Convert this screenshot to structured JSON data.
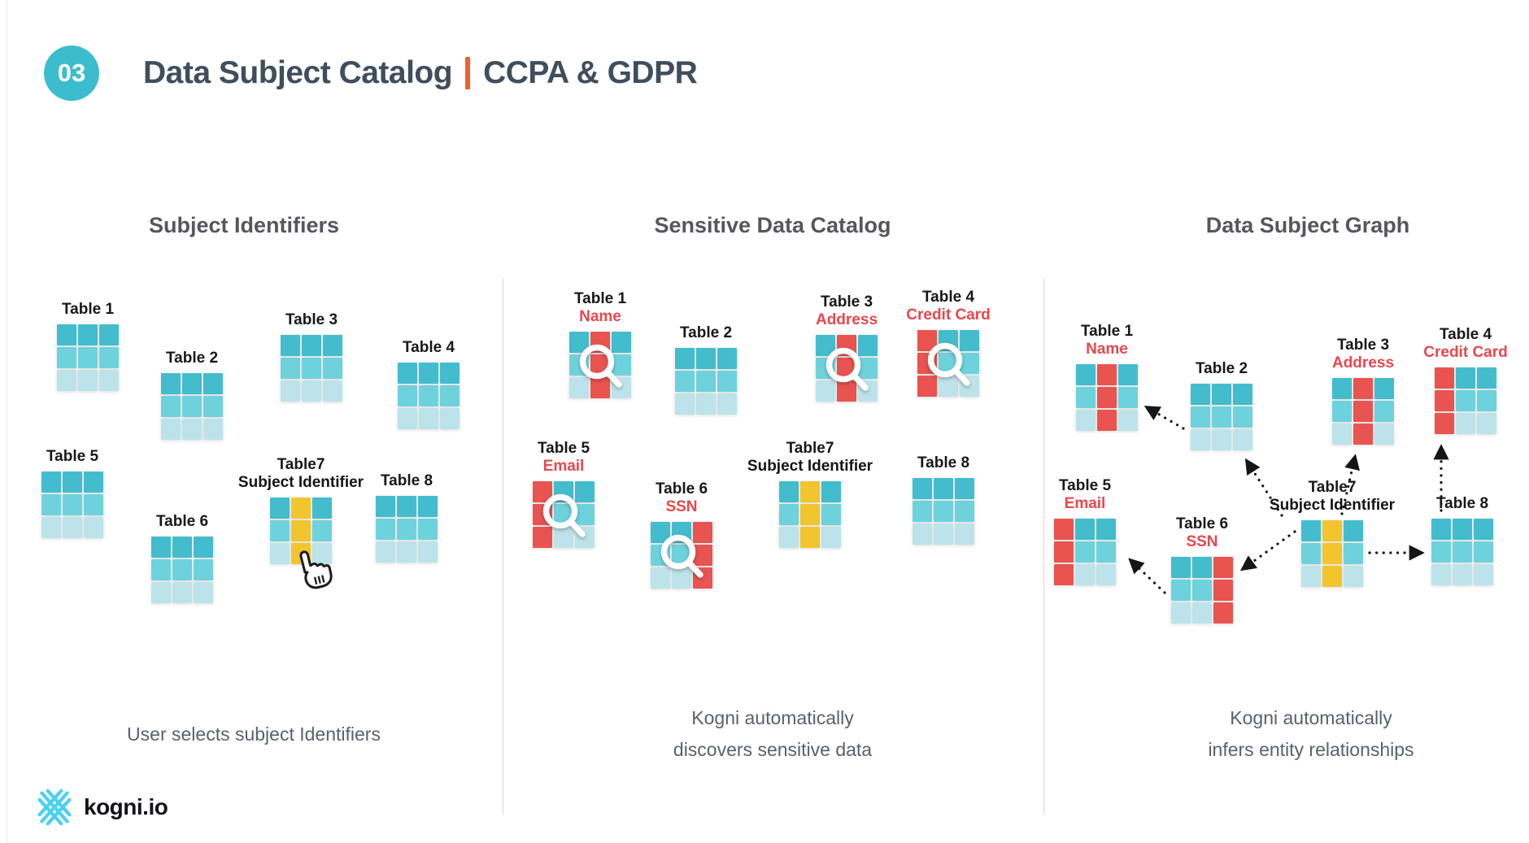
{
  "header": {
    "badge": "03",
    "title": "Data Subject Catalog",
    "subtitle": "CCPA & GDPR"
  },
  "footer": {
    "logo_text": "kogni.io"
  },
  "panels": [
    {
      "title": "Subject Identifiers",
      "caption_lines": [
        "User selects subject Identifiers"
      ],
      "tables": [
        {
          "name": "Table 1",
          "variant": "plain"
        },
        {
          "name": "Table 2",
          "variant": "plain"
        },
        {
          "name": "Table 3",
          "variant": "plain"
        },
        {
          "name": "Table 4",
          "variant": "plain"
        },
        {
          "name": "Table 5",
          "variant": "plain"
        },
        {
          "name": "Table 6",
          "variant": "plain"
        },
        {
          "name": "Table7",
          "tag": "Subject Identifier",
          "tag_style": "identifier",
          "variant": "yellow-mid",
          "cursor": true
        },
        {
          "name": "Table 8",
          "variant": "plain"
        }
      ]
    },
    {
      "title": "Sensitive Data Catalog",
      "caption_lines": [
        "Kogni automatically",
        "discovers sensitive data"
      ],
      "tables": [
        {
          "name": "Table 1",
          "tag": "Name",
          "tag_style": "sensitive",
          "variant": "red-mid",
          "magnifier": true
        },
        {
          "name": "Table 2",
          "variant": "plain"
        },
        {
          "name": "Table 3",
          "tag": "Address",
          "tag_style": "sensitive",
          "variant": "red-mid",
          "magnifier": true
        },
        {
          "name": "Table 4",
          "tag": "Credit Card",
          "tag_style": "sensitive",
          "variant": "red-left",
          "magnifier": true
        },
        {
          "name": "Table 5",
          "tag": "Email",
          "tag_style": "sensitive",
          "variant": "red-left",
          "magnifier": true
        },
        {
          "name": "Table 6",
          "tag": "SSN",
          "tag_style": "sensitive",
          "variant": "red-right",
          "magnifier": true
        },
        {
          "name": "Table7",
          "tag": "Subject Identifier",
          "tag_style": "identifier",
          "variant": "yellow-mid"
        },
        {
          "name": "Table 8",
          "variant": "plain"
        }
      ]
    },
    {
      "title": "Data Subject Graph",
      "caption_lines": [
        "Kogni automatically",
        "infers entity relationships"
      ],
      "tables": [
        {
          "name": "Table 1",
          "tag": "Name",
          "tag_style": "sensitive",
          "variant": "red-mid"
        },
        {
          "name": "Table 2",
          "variant": "plain"
        },
        {
          "name": "Table 3",
          "tag": "Address",
          "tag_style": "sensitive",
          "variant": "red-mid"
        },
        {
          "name": "Table 4",
          "tag": "Credit Card",
          "tag_style": "sensitive",
          "variant": "red-left"
        },
        {
          "name": "Table 5",
          "tag": "Email",
          "tag_style": "sensitive",
          "variant": "red-left"
        },
        {
          "name": "Table 6",
          "tag": "SSN",
          "tag_style": "sensitive",
          "variant": "red-right"
        },
        {
          "name": "Table7",
          "tag": "Subject Identifier",
          "tag_style": "identifier",
          "variant": "yellow-mid"
        },
        {
          "name": "Table 8",
          "variant": "plain"
        }
      ],
      "edges": [
        {
          "from": "Table 2",
          "to": "Table 1"
        },
        {
          "from": "Table7",
          "to": "Table 2"
        },
        {
          "from": "Table7",
          "to": "Table 3"
        },
        {
          "from": "Table 8",
          "to": "Table 4"
        },
        {
          "from": "Table7",
          "to": "Table 8"
        },
        {
          "from": "Table7",
          "to": "Table 6"
        },
        {
          "from": "Table 6",
          "to": "Table 5"
        }
      ]
    }
  ],
  "colors": {
    "teal_dark": "#43bccd",
    "teal_mid": "#6ed2dd",
    "teal_light": "#bde3ea",
    "red": "#e95350",
    "red_label": "#e8474d",
    "yellow": "#f2c52f",
    "orange": "#ee6230",
    "badge_teal": "#3cbdce",
    "title_dark": "#3f4e5c",
    "logo_cyan": "#4ad1f0"
  }
}
